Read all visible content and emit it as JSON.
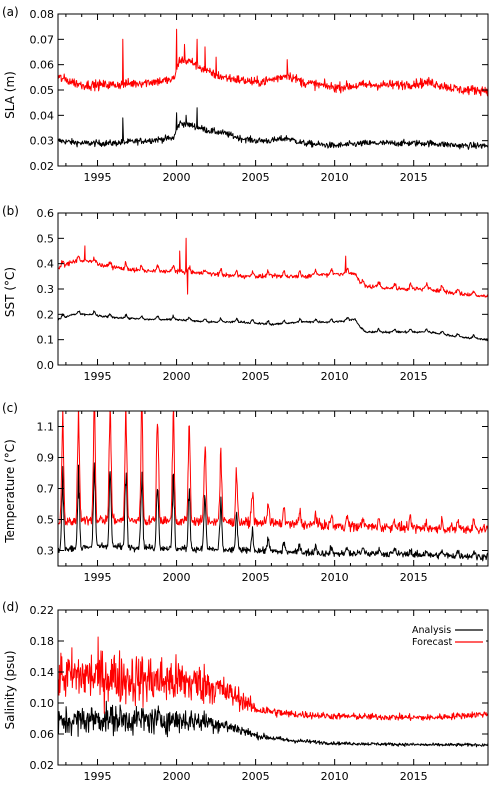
{
  "chart_data": [
    {
      "type": "line",
      "tag": "(a)",
      "ylabel": "SLA (m)",
      "xlim": [
        1992.5,
        2019.7
      ],
      "ylim": [
        0.02,
        0.08
      ],
      "yticks": [
        0.02,
        0.03,
        0.04,
        0.05,
        0.06,
        0.07,
        0.08
      ],
      "ytick_labels": [
        "0.02",
        "0.03",
        "0.04",
        "0.05",
        "0.06",
        "0.07",
        "0.08"
      ],
      "xticks": [
        1995,
        2000,
        2005,
        2010,
        2015
      ],
      "xtick_labels": [
        "1995",
        "2000",
        "2005",
        "2010",
        "2015"
      ],
      "series": [
        {
          "key": "analysis",
          "color": "#000000",
          "x": [
            1992.5,
            1994,
            1996,
            1998,
            1999.8,
            2000.2,
            2001,
            2002,
            2003,
            2004,
            2005,
            2006,
            2007,
            2008,
            2010,
            2012,
            2014,
            2016,
            2018,
            2019.7
          ],
          "y": [
            0.03,
            0.029,
            0.029,
            0.03,
            0.031,
            0.037,
            0.036,
            0.034,
            0.033,
            0.031,
            0.03,
            0.03,
            0.031,
            0.029,
            0.028,
            0.029,
            0.029,
            0.029,
            0.028,
            0.028
          ],
          "noise": 0.0012,
          "spikes": [
            [
              1996.6,
              0.039
            ],
            [
              2000.0,
              0.041
            ],
            [
              2001.3,
              0.043
            ],
            [
              2000.6,
              0.04
            ]
          ]
        },
        {
          "key": "forecast",
          "color": "#ff0000",
          "x": [
            1992.5,
            1994,
            1996,
            1998,
            1999.8,
            2000.2,
            2001,
            2002,
            2003,
            2004,
            2005,
            2006,
            2007,
            2008,
            2010,
            2012,
            2014,
            2016,
            2018,
            2019.7
          ],
          "y": [
            0.055,
            0.052,
            0.052,
            0.053,
            0.054,
            0.062,
            0.061,
            0.057,
            0.055,
            0.054,
            0.053,
            0.054,
            0.056,
            0.053,
            0.051,
            0.052,
            0.052,
            0.053,
            0.05,
            0.05
          ],
          "noise": 0.0018,
          "spikes": [
            [
              1996.6,
              0.07
            ],
            [
              2000.0,
              0.074
            ],
            [
              2000.5,
              0.068
            ],
            [
              2001.3,
              0.07
            ],
            [
              2001.8,
              0.067
            ],
            [
              2007.0,
              0.062
            ],
            [
              2002.5,
              0.063
            ]
          ]
        }
      ]
    },
    {
      "type": "line",
      "tag": "(b)",
      "ylabel": "SST (°C)",
      "xlim": [
        1992.5,
        2019.7
      ],
      "ylim": [
        0.0,
        0.6
      ],
      "yticks": [
        0.0,
        0.1,
        0.2,
        0.3,
        0.4,
        0.5,
        0.6
      ],
      "ytick_labels": [
        "0.0",
        "0.1",
        "0.2",
        "0.3",
        "0.4",
        "0.5",
        "0.6"
      ],
      "xticks": [
        1995,
        2000,
        2005,
        2010,
        2015
      ],
      "xtick_labels": [
        "1995",
        "2000",
        "2005",
        "2010",
        "2015"
      ],
      "series": [
        {
          "key": "analysis",
          "color": "#000000",
          "x": [
            1992.5,
            1993.5,
            1994.5,
            1995.5,
            1998,
            2000,
            2002,
            2004,
            2006,
            2008,
            2010,
            2011.3,
            2011.8,
            2012.5,
            2014,
            2016,
            2018,
            2019.7
          ],
          "y": [
            0.18,
            0.2,
            0.2,
            0.19,
            0.18,
            0.18,
            0.17,
            0.17,
            0.16,
            0.17,
            0.17,
            0.18,
            0.13,
            0.13,
            0.13,
            0.13,
            0.11,
            0.1
          ],
          "noise": 0.004,
          "amp": 0.012
        },
        {
          "key": "forecast",
          "color": "#ff0000",
          "x": [
            1992.5,
            1993.5,
            1994.5,
            1995.5,
            1998,
            2000,
            2002,
            2004,
            2006,
            2008,
            2010,
            2011.3,
            2011.8,
            2012.5,
            2014,
            2016,
            2018,
            2019.7
          ],
          "y": [
            0.38,
            0.41,
            0.41,
            0.39,
            0.37,
            0.37,
            0.36,
            0.35,
            0.35,
            0.35,
            0.36,
            0.36,
            0.31,
            0.31,
            0.3,
            0.3,
            0.28,
            0.27
          ],
          "noise": 0.008,
          "amp": 0.02,
          "spikes": [
            [
              2000.6,
              0.5
            ],
            [
              2000.7,
              0.28
            ],
            [
              2000.2,
              0.45
            ],
            [
              1994.2,
              0.47
            ],
            [
              2010.7,
              0.43
            ]
          ]
        }
      ]
    },
    {
      "type": "line",
      "tag": "(c)",
      "ylabel": "Temperature (°C)",
      "xlim": [
        1992.5,
        2019.7
      ],
      "ylim": [
        0.2,
        1.2
      ],
      "yticks": [
        0.3,
        0.5,
        0.7,
        0.9,
        1.1
      ],
      "ytick_labels": [
        "0.3",
        "0.5",
        "0.7",
        "0.9",
        "1.1"
      ],
      "xticks": [
        1995,
        2000,
        2005,
        2010,
        2015
      ],
      "xtick_labels": [
        "1995",
        "2000",
        "2005",
        "2010",
        "2015"
      ],
      "series": [
        {
          "key": "analysis",
          "color": "#000000",
          "x": [
            1992.5,
            1995,
            1998,
            2000,
            2002,
            2004,
            2005,
            2007,
            2010,
            2013,
            2016,
            2019.7
          ],
          "y": [
            0.3,
            0.33,
            0.32,
            0.31,
            0.31,
            0.3,
            0.3,
            0.29,
            0.28,
            0.28,
            0.27,
            0.26
          ],
          "amp": [
            0.45,
            0.48,
            0.46,
            0.42,
            0.34,
            0.2,
            0.1,
            0.06,
            0.04,
            0.03,
            0.03,
            0.03
          ],
          "noise": 0.02
        },
        {
          "key": "forecast",
          "color": "#ff0000",
          "x": [
            1992.5,
            1995,
            1998,
            2000,
            2002,
            2004,
            2005,
            2007,
            2010,
            2013,
            2016,
            2019.7
          ],
          "y": [
            0.48,
            0.5,
            0.49,
            0.49,
            0.49,
            0.48,
            0.48,
            0.47,
            0.46,
            0.45,
            0.44,
            0.44
          ],
          "amp": [
            0.62,
            0.72,
            0.7,
            0.68,
            0.48,
            0.3,
            0.17,
            0.09,
            0.06,
            0.05,
            0.05,
            0.05
          ],
          "noise": 0.03
        }
      ]
    },
    {
      "type": "line",
      "tag": "(d)",
      "ylabel": "Salinity (psu)",
      "xlim": [
        1992.5,
        2019.7
      ],
      "ylim": [
        0.02,
        0.22
      ],
      "yticks": [
        0.02,
        0.06,
        0.1,
        0.14,
        0.18,
        0.22
      ],
      "ytick_labels": [
        "0.02",
        "0.06",
        "0.10",
        "0.14",
        "0.18",
        "0.22"
      ],
      "xticks": [
        1995,
        2000,
        2005,
        2010,
        2015
      ],
      "xtick_labels": [
        "1995",
        "2000",
        "2005",
        "2010",
        "2015"
      ],
      "legend_position": "top-right",
      "series": [
        {
          "key": "analysis",
          "name": "Analysis",
          "color": "#000000",
          "x": [
            1992.5,
            1995,
            1998,
            2000,
            2002,
            2004,
            2005,
            2007,
            2010,
            2013,
            2016,
            2019.7
          ],
          "y": [
            0.075,
            0.08,
            0.078,
            0.078,
            0.076,
            0.066,
            0.058,
            0.052,
            0.048,
            0.047,
            0.046,
            0.046
          ],
          "noise": [
            0.016,
            0.018,
            0.018,
            0.016,
            0.012,
            0.007,
            0.004,
            0.003,
            0.002,
            0.002,
            0.002,
            0.002
          ]
        },
        {
          "key": "forecast",
          "name": "Forecast",
          "color": "#ff0000",
          "x": [
            1992.5,
            1995,
            1998,
            2000,
            2002,
            2004,
            2005,
            2007,
            2010,
            2013,
            2016,
            2019.7
          ],
          "y": [
            0.135,
            0.135,
            0.13,
            0.128,
            0.124,
            0.106,
            0.092,
            0.086,
            0.083,
            0.082,
            0.081,
            0.086
          ],
          "noise": [
            0.03,
            0.034,
            0.032,
            0.03,
            0.024,
            0.013,
            0.007,
            0.005,
            0.004,
            0.004,
            0.004,
            0.004
          ]
        }
      ]
    }
  ]
}
